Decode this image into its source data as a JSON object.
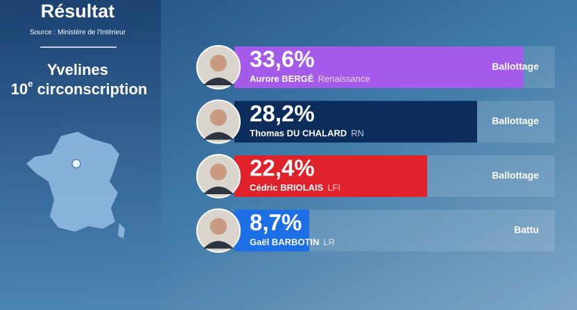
{
  "chart_data": {
    "type": "bar",
    "title": "Résultat",
    "source": "Source : Ministère de l'Intérieur",
    "region": "Yvelines",
    "district": [
      "10",
      "e",
      " circonscription"
    ],
    "categories": [
      "Aurore BERGÉ",
      "Thomas  DU CHALARD",
      "Cédric  BRIOLAIS",
      "Gaël BARBOTIN"
    ],
    "parties": [
      "Renaissance",
      "RN",
      "LFI",
      "LR"
    ],
    "statuses": [
      "Ballottage",
      "Ballottage",
      "Ballottage",
      "Battu"
    ],
    "values": [
      33.6,
      28.2,
      22.4,
      8.7
    ],
    "value_labels": [
      "33,6%",
      "28,2%",
      "22,4%",
      "8,7%"
    ],
    "colors": [
      "#a45bea",
      "#0c2d5c",
      "#e0222b",
      "#1d6fe6"
    ]
  }
}
